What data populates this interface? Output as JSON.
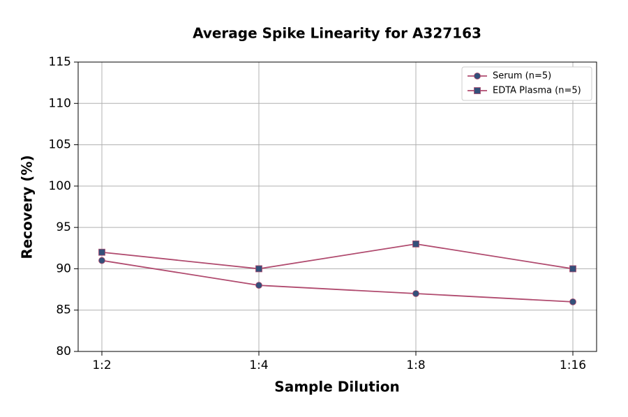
{
  "chart_data": {
    "type": "line",
    "title": "Average Spike Linearity for A327163",
    "x_label": "Sample Dilution",
    "y_label": "Recovery (%)",
    "categories": [
      "1:2",
      "1:4",
      "1:8",
      "1:16"
    ],
    "series": [
      {
        "name": "Serum (n=5)",
        "color": "#b04a6e",
        "marker_color": "#34507a",
        "marker": "circle",
        "values": [
          91,
          88,
          87,
          86
        ]
      },
      {
        "name": "EDTA Plasma (n=5)",
        "color": "#b04a6e",
        "marker_color": "#34507a",
        "marker": "square",
        "values": [
          92,
          90,
          93,
          90
        ]
      }
    ],
    "ylim": [
      80,
      115
    ],
    "yticks": [
      80,
      85,
      90,
      95,
      100,
      105,
      110,
      115
    ],
    "grid": true,
    "legend": "upper right"
  }
}
